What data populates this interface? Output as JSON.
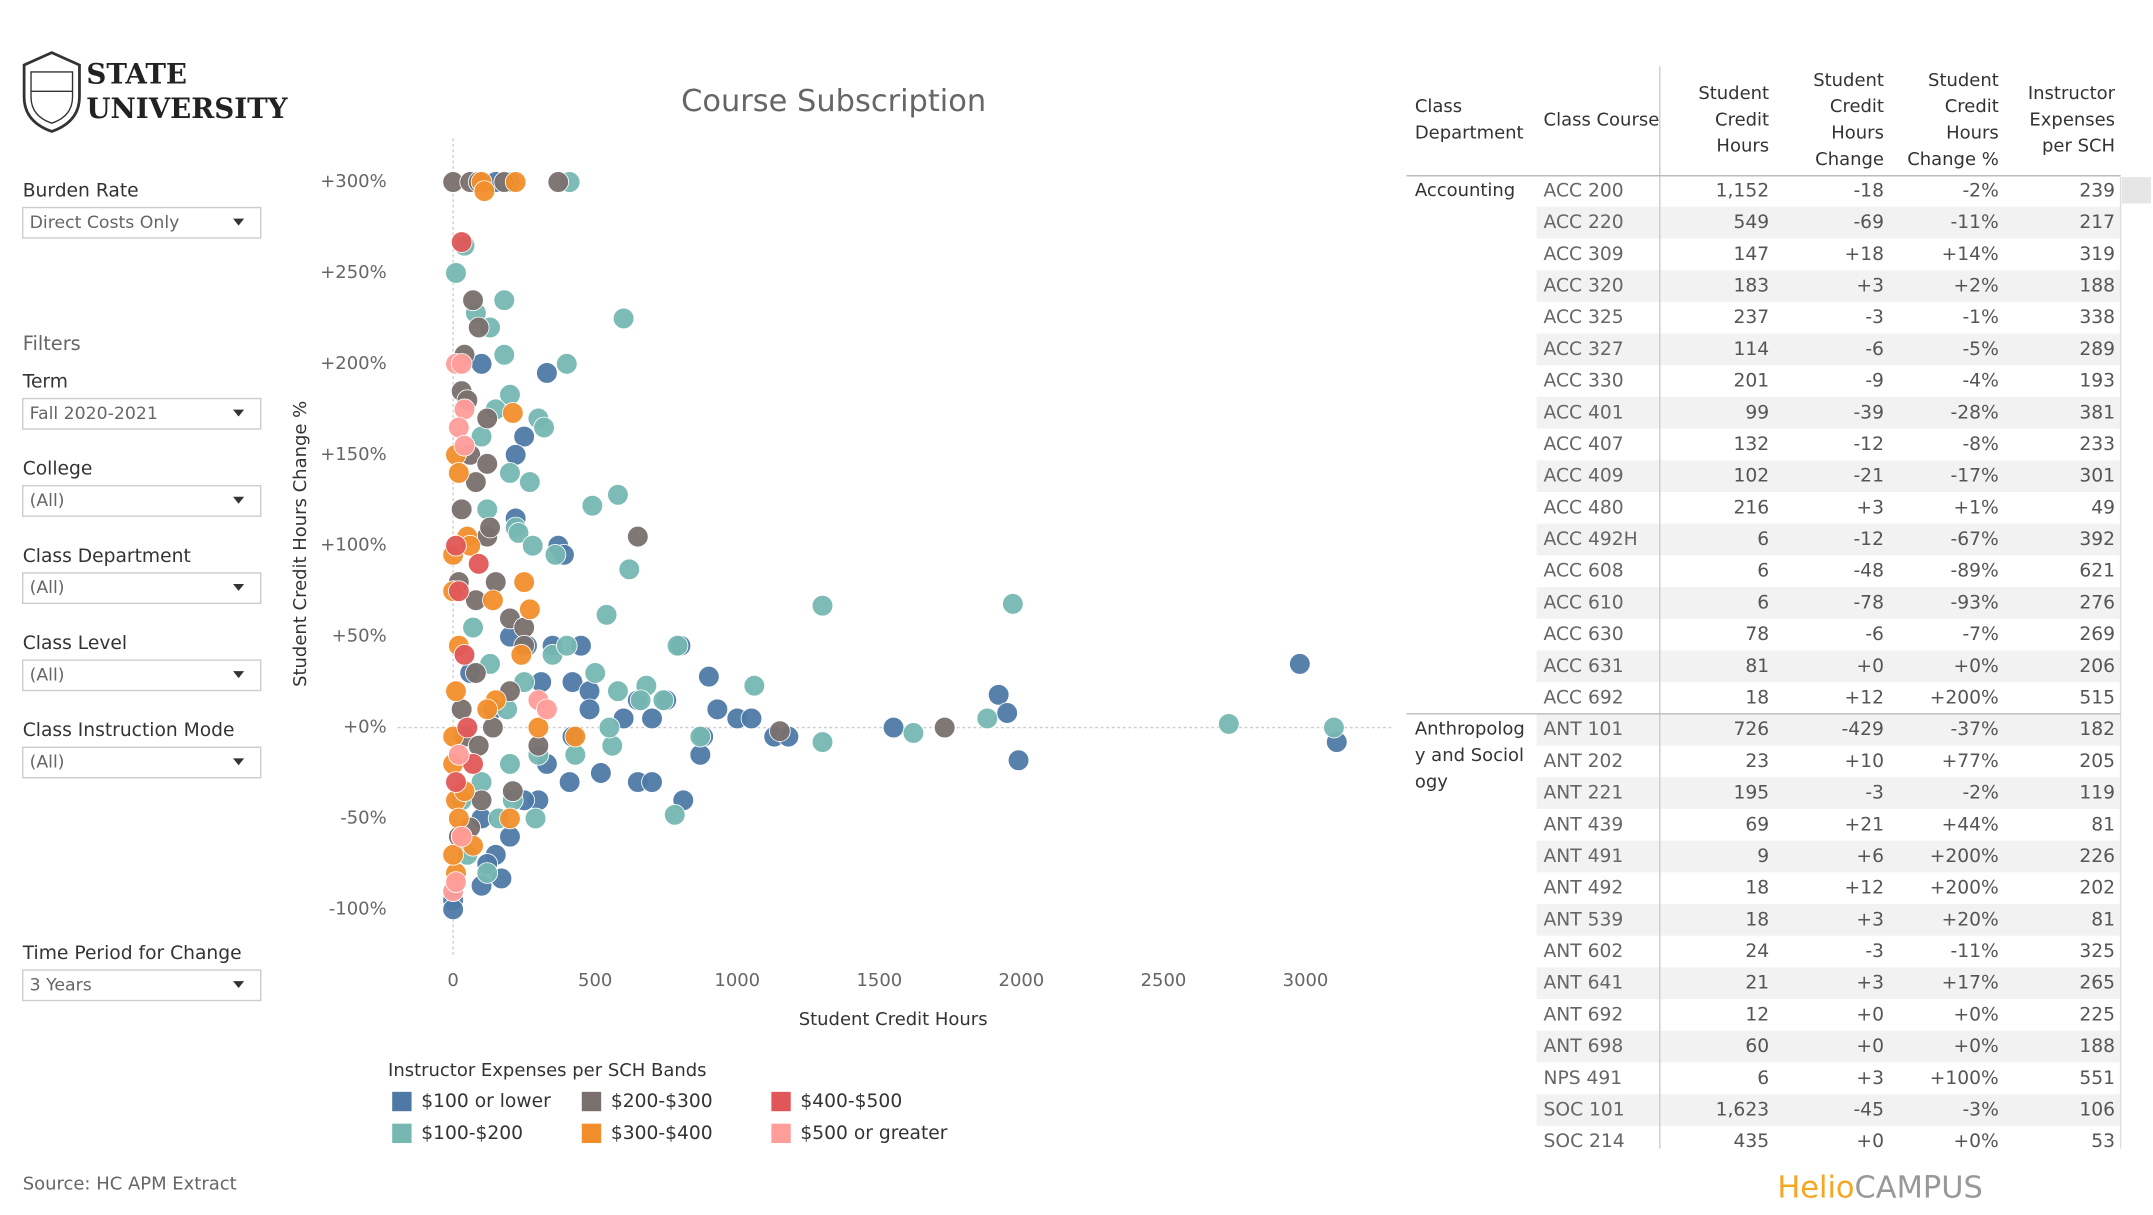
{
  "sidebar": {
    "logo": [
      "STATE",
      "UNIVERSITY"
    ],
    "filters_heading": "Filters",
    "controls": [
      {
        "label": "Burden Rate",
        "value": "Direct Costs Only"
      },
      {
        "label": "Term",
        "value": "Fall 2020-2021"
      },
      {
        "label": "College",
        "value": "(All)"
      },
      {
        "label": "Class Department",
        "value": "(All)"
      },
      {
        "label": "Class Level",
        "value": "(All)"
      },
      {
        "label": "Class Instruction Mode",
        "value": "(All)"
      },
      {
        "label": "Time Period for Change",
        "value": "3 Years"
      }
    ],
    "source": "Source: HC APM Extract"
  },
  "brand": {
    "first": "Helio",
    "second": "CAMPUS"
  },
  "chart_data": {
    "type": "scatter",
    "title": "Course Subscription",
    "x_label": "Student Credit Hours",
    "y_label": "Student Credit Hours Change %",
    "legend_title": "Instructor Expenses per SCH Bands",
    "xlim": [
      -195,
      3302
    ],
    "ylim": [
      -125,
      324
    ],
    "xticks": [
      0,
      500,
      1000,
      1500,
      2000,
      2500,
      3000
    ],
    "yticks": [
      {
        "value": 300,
        "label": "+300%"
      },
      {
        "value": 250,
        "label": "+250%"
      },
      {
        "value": 200,
        "label": "+200%"
      },
      {
        "value": 150,
        "label": "+150%"
      },
      {
        "value": 100,
        "label": "+100%"
      },
      {
        "value": 50,
        "label": "+50%"
      },
      {
        "value": 0,
        "label": "+0%"
      },
      {
        "value": -50,
        "label": "-50%"
      },
      {
        "value": -100,
        "label": "-100%"
      }
    ],
    "series": [
      {
        "name": "$100 or lower",
        "color": "#4e79a7",
        "x": [
          150,
          100,
          330,
          250,
          220,
          220,
          370,
          390,
          450,
          310,
          420,
          480,
          800,
          900,
          930,
          750,
          1000,
          1050,
          880,
          1130,
          1550,
          1920,
          1950,
          2980,
          3110,
          1990,
          810,
          650,
          700,
          520,
          410,
          300,
          200,
          150,
          120,
          170,
          100,
          0,
          0,
          250,
          100,
          420,
          600,
          700,
          870,
          1180,
          650,
          480,
          330,
          140,
          60,
          200,
          260,
          350
        ],
        "values": [
          300,
          200,
          195,
          160,
          150,
          115,
          100,
          95,
          45,
          25,
          25,
          20,
          45,
          28,
          10,
          15,
          5,
          5,
          -5,
          -5,
          0,
          18,
          8,
          35,
          -8,
          -18,
          -40,
          -30,
          -30,
          -25,
          -30,
          -40,
          -60,
          -70,
          -75,
          -83,
          -87,
          -95,
          -100,
          -40,
          -50,
          -5,
          5,
          5,
          -15,
          -5,
          15,
          10,
          -20,
          10,
          30,
          50,
          45,
          45
        ]
      },
      {
        "name": "$100-$200",
        "color": "#76b7b2",
        "x": [
          200,
          410,
          10,
          40,
          600,
          180,
          80,
          130,
          180,
          400,
          200,
          300,
          320,
          150,
          100,
          200,
          270,
          120,
          580,
          490,
          220,
          230,
          620,
          280,
          360,
          540,
          1300,
          1970,
          790,
          580,
          680,
          1060,
          660,
          740,
          870,
          1300,
          1620,
          1880,
          2730,
          3100,
          290,
          780,
          210,
          50,
          120,
          160,
          350,
          400,
          500,
          250,
          130,
          70,
          200,
          300,
          430,
          560,
          190,
          100,
          30,
          550
        ],
        "values": [
          300,
          300,
          250,
          265,
          225,
          235,
          228,
          220,
          205,
          200,
          183,
          170,
          165,
          175,
          160,
          140,
          135,
          120,
          128,
          122,
          110,
          107,
          87,
          100,
          95,
          62,
          67,
          68,
          45,
          20,
          23,
          23,
          15,
          15,
          -5,
          -8,
          -3,
          5,
          2,
          0,
          -50,
          -48,
          -40,
          -70,
          -80,
          -50,
          40,
          45,
          30,
          25,
          35,
          55,
          -20,
          -15,
          -15,
          -10,
          10,
          -30,
          -40,
          0
        ]
      },
      {
        "name": "$200-$300",
        "color": "#79706e",
        "x": [
          0,
          60,
          90,
          180,
          370,
          40,
          70,
          90,
          30,
          50,
          120,
          60,
          80,
          120,
          30,
          120,
          130,
          650,
          20,
          80,
          200,
          250,
          1150,
          1730,
          40,
          90,
          140,
          200,
          300,
          100,
          60,
          20,
          80,
          250,
          210,
          30,
          150
        ],
        "values": [
          300,
          300,
          300,
          300,
          300,
          205,
          235,
          220,
          185,
          180,
          170,
          150,
          135,
          145,
          120,
          105,
          110,
          105,
          80,
          70,
          60,
          55,
          -2,
          0,
          -5,
          -10,
          0,
          20,
          -10,
          -40,
          -55,
          -60,
          30,
          45,
          -35,
          10,
          80
        ]
      },
      {
        "name": "$300-$400",
        "color": "#f28e2b",
        "x": [
          100,
          110,
          220,
          0,
          10,
          20,
          0,
          10,
          20,
          210,
          0,
          50,
          250,
          140,
          270,
          240,
          150,
          0,
          10,
          20,
          30,
          10,
          0,
          120,
          300,
          70,
          200,
          60,
          430,
          40
        ],
        "values": [
          300,
          295,
          300,
          -5,
          20,
          45,
          75,
          150,
          140,
          173,
          95,
          105,
          80,
          70,
          65,
          40,
          15,
          -20,
          -40,
          -50,
          -60,
          -80,
          -70,
          10,
          0,
          -65,
          -50,
          100,
          -5,
          -35
        ]
      },
      {
        "name": "$400-$500",
        "color": "#e15759",
        "x": [
          30,
          10,
          20,
          40,
          50,
          10,
          70,
          90
        ],
        "values": [
          267,
          100,
          75,
          40,
          0,
          -30,
          -20,
          90
        ]
      },
      {
        "name": "$500 or greater",
        "color": "#ff9d9a",
        "x": [
          10,
          30,
          40,
          20,
          40,
          0,
          10,
          300,
          330,
          20,
          30
        ],
        "values": [
          200,
          200,
          175,
          165,
          155,
          -90,
          -85,
          15,
          10,
          -15,
          -60
        ]
      }
    ]
  },
  "table": {
    "headers": [
      [
        "Class",
        "Department"
      ],
      [
        "Class Course"
      ],
      [
        "Student",
        "Credit",
        "Hours"
      ],
      [
        "Student",
        "Credit",
        "Hours",
        "Change"
      ],
      [
        "Student",
        "Credit",
        "Hours",
        "Change %"
      ],
      [
        "Instructor",
        "Expenses",
        "per SCH"
      ]
    ],
    "groups": [
      {
        "department": "Accounting",
        "rows": [
          [
            "ACC 200",
            "1,152",
            "-18",
            "-2%",
            "239"
          ],
          [
            "ACC 220",
            "549",
            "-69",
            "-11%",
            "217"
          ],
          [
            "ACC 309",
            "147",
            "+18",
            "+14%",
            "319"
          ],
          [
            "ACC 320",
            "183",
            "+3",
            "+2%",
            "188"
          ],
          [
            "ACC 325",
            "237",
            "-3",
            "-1%",
            "338"
          ],
          [
            "ACC 327",
            "114",
            "-6",
            "-5%",
            "289"
          ],
          [
            "ACC 330",
            "201",
            "-9",
            "-4%",
            "193"
          ],
          [
            "ACC 401",
            "99",
            "-39",
            "-28%",
            "381"
          ],
          [
            "ACC 407",
            "132",
            "-12",
            "-8%",
            "233"
          ],
          [
            "ACC 409",
            "102",
            "-21",
            "-17%",
            "301"
          ],
          [
            "ACC 480",
            "216",
            "+3",
            "+1%",
            "49"
          ],
          [
            "ACC 492H",
            "6",
            "-12",
            "-67%",
            "392"
          ],
          [
            "ACC 608",
            "6",
            "-48",
            "-89%",
            "621"
          ],
          [
            "ACC 610",
            "6",
            "-78",
            "-93%",
            "276"
          ],
          [
            "ACC 630",
            "78",
            "-6",
            "-7%",
            "269"
          ],
          [
            "ACC 631",
            "81",
            "+0",
            "+0%",
            "206"
          ],
          [
            "ACC 692",
            "18",
            "+12",
            "+200%",
            "515"
          ]
        ]
      },
      {
        "department": "Anthropology and Sociology",
        "rows": [
          [
            "ANT 101",
            "726",
            "-429",
            "-37%",
            "182"
          ],
          [
            "ANT 202",
            "23",
            "+10",
            "+77%",
            "205"
          ],
          [
            "ANT 221",
            "195",
            "-3",
            "-2%",
            "119"
          ],
          [
            "ANT 439",
            "69",
            "+21",
            "+44%",
            "81"
          ],
          [
            "ANT 491",
            "9",
            "+6",
            "+200%",
            "226"
          ],
          [
            "ANT 492",
            "18",
            "+12",
            "+200%",
            "202"
          ],
          [
            "ANT 539",
            "18",
            "+3",
            "+20%",
            "81"
          ],
          [
            "ANT 602",
            "24",
            "-3",
            "-11%",
            "325"
          ],
          [
            "ANT 641",
            "21",
            "+3",
            "+17%",
            "265"
          ],
          [
            "ANT 692",
            "12",
            "+0",
            "+0%",
            "225"
          ],
          [
            "ANT 698",
            "60",
            "+0",
            "+0%",
            "188"
          ],
          [
            "NPS 491",
            "6",
            "+3",
            "+100%",
            "551"
          ],
          [
            "SOC 101",
            "1,623",
            "-45",
            "-3%",
            "106"
          ],
          [
            "SOC 214",
            "435",
            "+0",
            "+0%",
            "53"
          ]
        ]
      }
    ]
  }
}
